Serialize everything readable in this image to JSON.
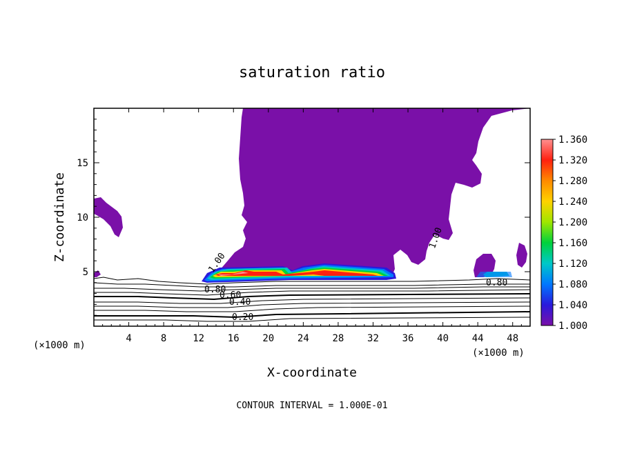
{
  "chart_data": {
    "type": "heatmap",
    "title": "saturation ratio",
    "xlabel": "X-coordinate",
    "ylabel": "Z-coordinate",
    "x_unit": "(×1000 m)",
    "x_unit_right": "(×1000 m)",
    "xlim": [
      0,
      50
    ],
    "ylim": [
      0,
      20
    ],
    "x_ticks": [
      4,
      8,
      12,
      16,
      20,
      24,
      28,
      32,
      36,
      40,
      44,
      48
    ],
    "y_ticks": [
      5,
      10,
      15
    ],
    "contour_interval_text": "CONTOUR INTERVAL = 1.000E-01",
    "contour_labels": [
      "1.00",
      "0.80",
      "0.60",
      "0.40",
      "0.20",
      "1.00",
      "0.80"
    ],
    "colorbar": {
      "ticks": [
        "1.360",
        "1.320",
        "1.280",
        "1.240",
        "1.200",
        "1.160",
        "1.120",
        "1.080",
        "1.040",
        "1.000"
      ],
      "range": [
        1.0,
        1.36
      ]
    },
    "colors": {
      "background": "#ffffff",
      "saturated": "#7a10a8",
      "scale": [
        "#7a10a8",
        "#2a1adc",
        "#0078ff",
        "#00c8c8",
        "#00d23c",
        "#a0e600",
        "#ffd200",
        "#ff8a00",
        "#ff2010",
        "#ff9090"
      ]
    }
  }
}
